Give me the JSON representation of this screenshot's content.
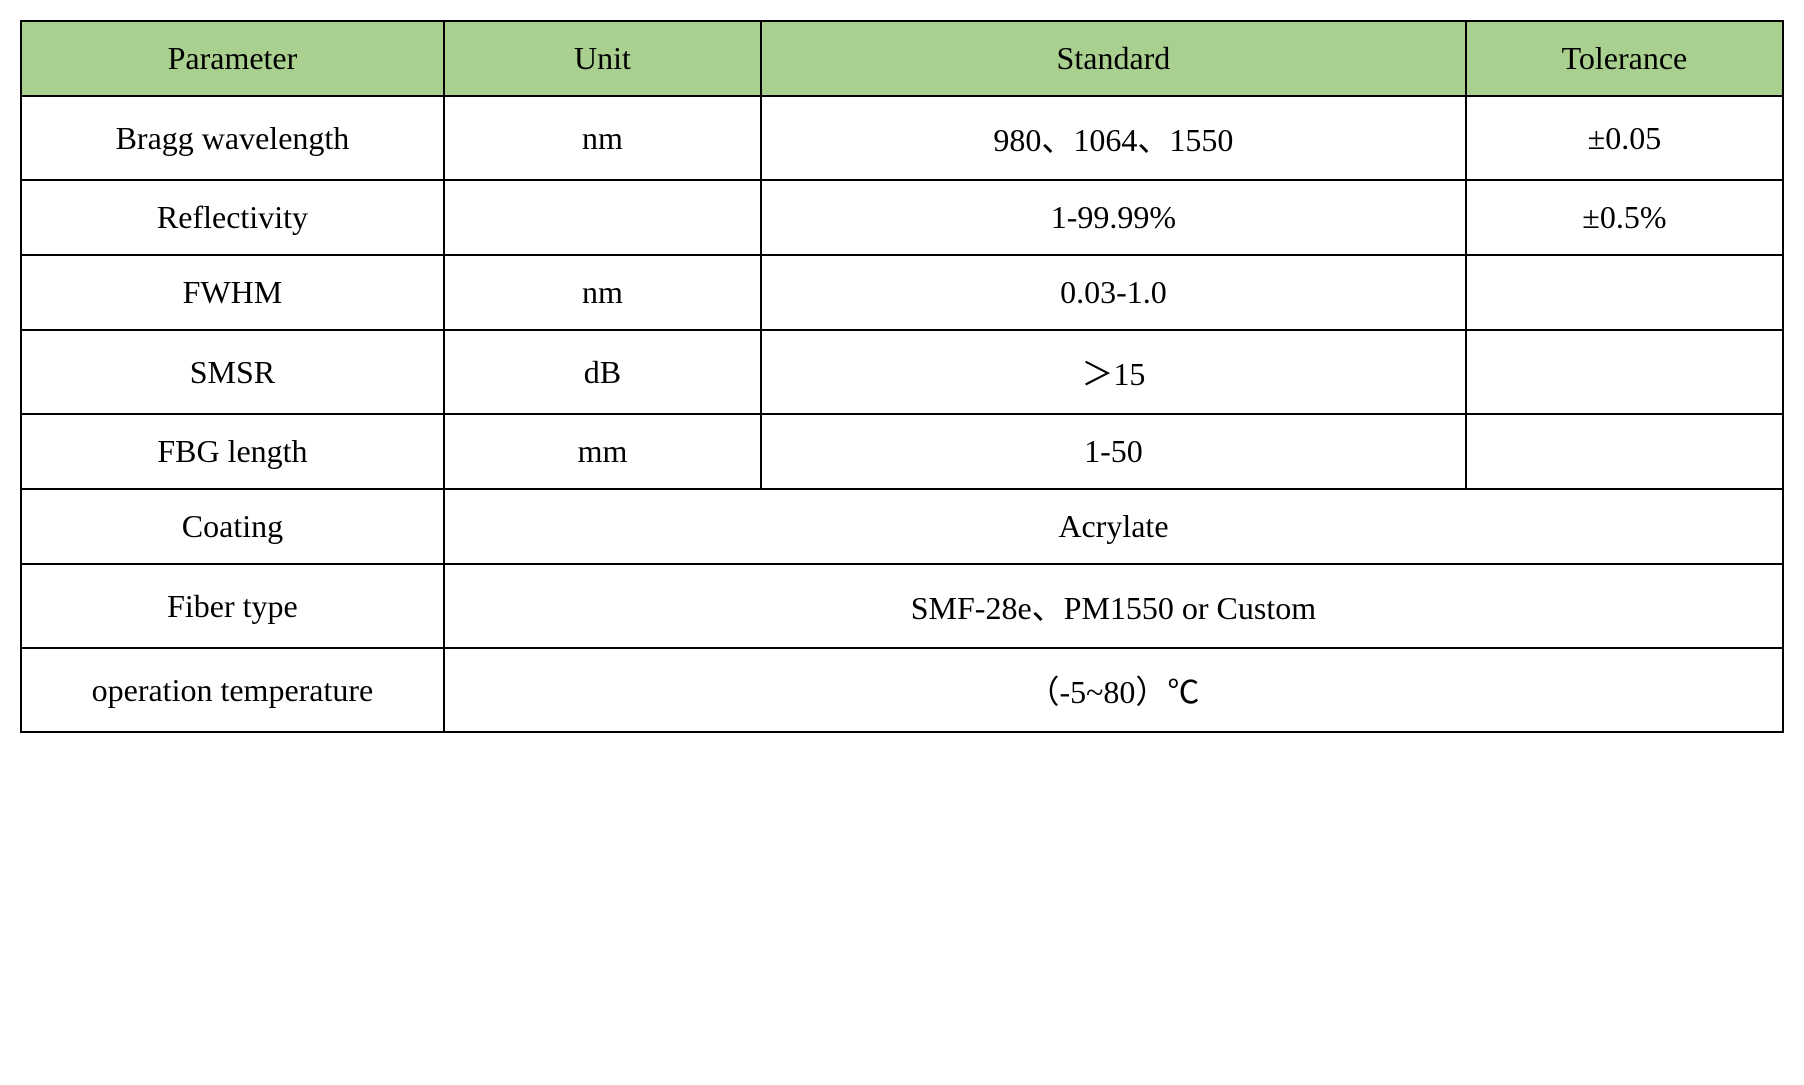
{
  "table": {
    "headers": {
      "parameter": "Parameter",
      "unit": "Unit",
      "standard": "Standard",
      "tolerance": "Tolerance"
    },
    "rows": [
      {
        "parameter": "Bragg wavelength",
        "unit": "nm",
        "standard": "980、1064、1550",
        "tolerance": "±0.05",
        "merged": false
      },
      {
        "parameter": "Reflectivity",
        "unit": "",
        "standard": "1-99.99%",
        "tolerance": "±0.5%",
        "merged": false
      },
      {
        "parameter": "FWHM",
        "unit": "nm",
        "standard": "0.03-1.0",
        "tolerance": "",
        "merged": false
      },
      {
        "parameter": "SMSR",
        "unit": "dB",
        "standard": "＞15",
        "tolerance": "",
        "merged": false
      },
      {
        "parameter": "FBG length",
        "unit": "mm",
        "standard": "1-50",
        "tolerance": "",
        "merged": false
      },
      {
        "parameter": "Coating",
        "merged_value": "Acrylate",
        "merged": true
      },
      {
        "parameter": "Fiber type",
        "merged_value": "SMF-28e、PM1550 or Custom",
        "merged": true
      },
      {
        "parameter": "operation temperature",
        "merged_value": "（-5~80）℃",
        "merged": true
      }
    ],
    "styling": {
      "header_bg_color": "#a9d08e",
      "border_color": "#000000",
      "border_width": 2,
      "font_family": "Times New Roman",
      "font_size": 32,
      "text_color": "#000000",
      "background_color": "#ffffff",
      "cell_padding_vertical": 18,
      "cell_padding_horizontal": 10
    }
  }
}
